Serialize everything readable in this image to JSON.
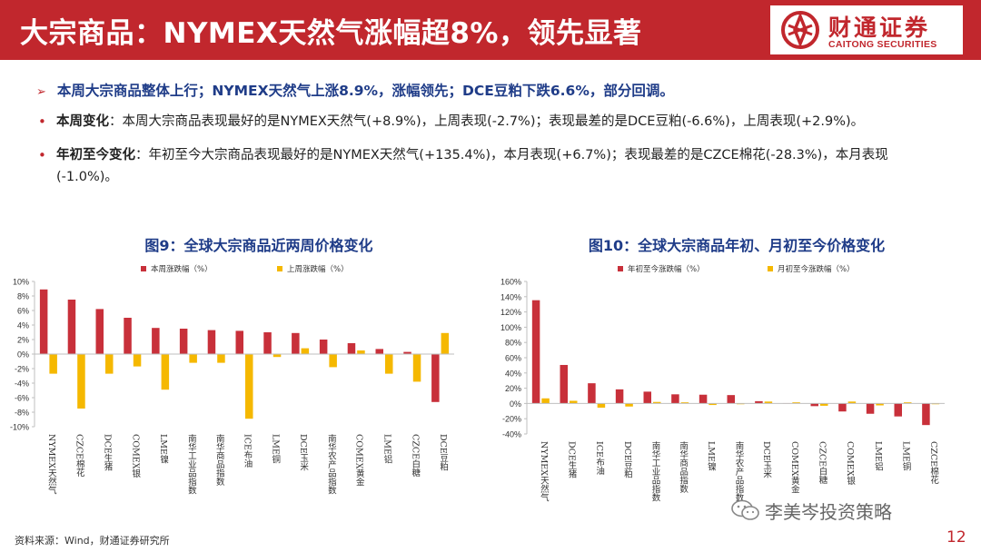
{
  "header": {
    "title": "大宗商品：NYMEX天然气涨幅超8%，领先显著",
    "logo_cn": "财通证券",
    "logo_en": "CAITONG SECURITIES"
  },
  "headline": {
    "arrow": "➢",
    "text": "本周大宗商品整体上行；NYMEX天然气上涨8.9%，涨幅领先；DCE豆粕下跌6.6%，部分回调。"
  },
  "bullets": [
    {
      "marker": "•",
      "key": "本周变化",
      "text": "：本周大宗商品表现最好的是NYMEX天然气(+8.9%)，上周表现(-2.7%)；表现最差的是DCE豆粕(-6.6%)，上周表现(+2.9%)。"
    },
    {
      "marker": "•",
      "key": "年初至今变化",
      "text": "：年初至今大宗商品表现最好的是NYMEX天然气(+135.4%)，本月表现(+6.7%)；表现最差的是CZCE棉花(-28.3%)，本月表现(-1.0%)。"
    }
  ],
  "colors": {
    "brand_red": "#c1272d",
    "heading_blue": "#1f3c88",
    "series_red": "#c8303a",
    "series_yellow": "#f5b800"
  },
  "chart_data": [
    {
      "type": "bar",
      "title": "图9：全球大宗商品近两周价格变化",
      "categories": [
        "NYMEX天然气",
        "CZCE棉花",
        "DCE生猪",
        "COMEX银",
        "LME镍",
        "南华工业品指数",
        "南华商品指数",
        "ICE布油",
        "LME铜",
        "DCE玉米",
        "南华农产品指数",
        "COMEX黄金",
        "LME铝",
        "CZCE白糖",
        "DCE豆粕"
      ],
      "series": [
        {
          "name": "本周涨跌幅（%）",
          "color": "#c8303a",
          "values": [
            8.9,
            7.5,
            6.2,
            5.0,
            3.6,
            3.5,
            3.3,
            3.2,
            3.0,
            2.9,
            2.0,
            1.5,
            0.7,
            0.3,
            -6.6
          ]
        },
        {
          "name": "上周涨跌幅（%）",
          "color": "#f5b800",
          "values": [
            -2.7,
            -7.5,
            -2.7,
            -1.7,
            -4.9,
            -1.2,
            -1.2,
            -8.9,
            -0.4,
            0.8,
            -1.8,
            0.5,
            -2.7,
            -3.8,
            2.9
          ]
        }
      ],
      "yticks": [
        "10%",
        "8%",
        "6%",
        "4%",
        "2%",
        "0%",
        "-2%",
        "-4%",
        "-6%",
        "-8%",
        "-10%"
      ],
      "ylim": [
        -10,
        10
      ],
      "legend_position": "top"
    },
    {
      "type": "bar",
      "title": "图10：全球大宗商品年初、月初至今价格变化",
      "categories": [
        "NYMEX天然气",
        "DCE生猪",
        "ICE布油",
        "DCE豆粕",
        "南华工业品指数",
        "南华商品指数",
        "LME镍",
        "南华农产品指数",
        "DCE玉米",
        "COMEX黄金",
        "CZCE白糖",
        "COMEX银",
        "LME铝",
        "LME铜",
        "CZCE棉花"
      ],
      "series": [
        {
          "name": "年初至今涨跌幅（%）",
          "color": "#c8303a",
          "values": [
            135.4,
            50.5,
            26.5,
            18.5,
            15.5,
            12.0,
            11.5,
            11.0,
            3.0,
            0.5,
            -3.5,
            -10.5,
            -13.5,
            -17.0,
            -28.3
          ]
        },
        {
          "name": "月初至今涨跌幅（%）",
          "color": "#f5b800",
          "values": [
            6.7,
            3.5,
            -5.5,
            -4.0,
            2.0,
            1.5,
            -2.0,
            -1.0,
            2.5,
            1.5,
            -3.0,
            2.5,
            -2.5,
            1.5,
            -1.0
          ]
        }
      ],
      "yticks": [
        "160%",
        "140%",
        "120%",
        "100%",
        "80%",
        "60%",
        "40%",
        "20%",
        "0%",
        "-20%",
        "-40%"
      ],
      "ylim": [
        -40,
        160
      ],
      "legend_position": "top"
    }
  ],
  "footer": {
    "source": "资料来源：Wind，财通证券研究所",
    "watermark": "李美岑投资策略",
    "page_number": "12"
  }
}
